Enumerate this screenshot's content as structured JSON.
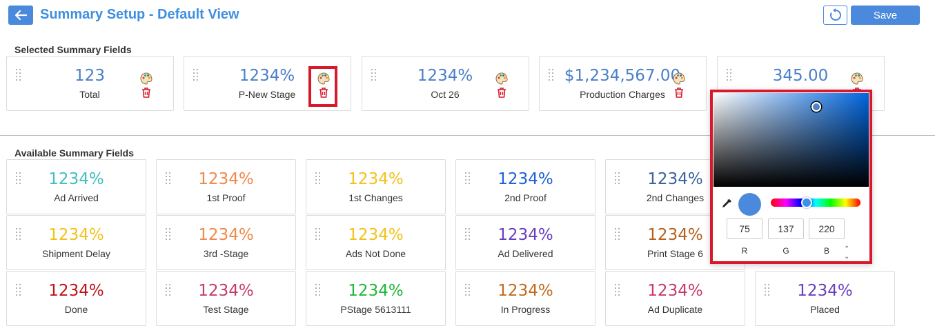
{
  "header": {
    "title": "Summary Setup - Default View",
    "save_label": "Save"
  },
  "selected_section_label": "Selected Summary Fields",
  "available_section_label": "Available Summary Fields",
  "selected": [
    {
      "value": "123",
      "label": "Total"
    },
    {
      "value": "1234%",
      "label": "P-New Stage"
    },
    {
      "value": "1234%",
      "label": "Oct 26"
    },
    {
      "value": "$1,234,567.00",
      "label": "Production Charges"
    },
    {
      "value": "345.00",
      "label": ""
    }
  ],
  "available": [
    {
      "value": "1234%",
      "label": "Ad Arrived",
      "color": "#3fbfbf"
    },
    {
      "value": "1234%",
      "label": "1st Proof",
      "color": "#f0894a"
    },
    {
      "value": "1234%",
      "label": "1st Changes",
      "color": "#f2c21b"
    },
    {
      "value": "1234%",
      "label": "2nd Proof",
      "color": "#1f5fd6"
    },
    {
      "value": "1234%",
      "label": "2nd Changes",
      "color": "#3a5f9a"
    },
    {
      "value": "1234%",
      "label": "Shipment Delay",
      "color": "#f2c21b"
    },
    {
      "value": "1234%",
      "label": "3rd -Stage",
      "color": "#f0894a"
    },
    {
      "value": "1234%",
      "label": "Ads Not Done",
      "color": "#f2c21b"
    },
    {
      "value": "1234%",
      "label": "Ad Delivered",
      "color": "#6a3fbf"
    },
    {
      "value": "1234%",
      "label": "Print Stage 6",
      "color": "#b8601a"
    },
    {
      "value": "1234%",
      "label": "Done",
      "color": "#c0121b"
    },
    {
      "value": "1234%",
      "label": "Test Stage",
      "color": "#c73a6a"
    },
    {
      "value": "1234%",
      "label": "PStage 5613111",
      "color": "#1fb83a"
    },
    {
      "value": "1234%",
      "label": "In Progress",
      "color": "#c46a1f"
    },
    {
      "value": "1234%",
      "label": "Ad Duplicate",
      "color": "#c73a6a"
    },
    {
      "value": "1234%",
      "label": "Placed",
      "color": "#6a3fbf"
    }
  ],
  "color_picker": {
    "r": "75",
    "g": "137",
    "b": "220",
    "r_label": "R",
    "g_label": "G",
    "b_label": "B",
    "swatch_color": "#4b89dc"
  },
  "icons": [
    "back-arrow-icon",
    "refresh-icon",
    "drag-handle-icon",
    "palette-icon",
    "trash-icon",
    "eyedropper-icon"
  ]
}
